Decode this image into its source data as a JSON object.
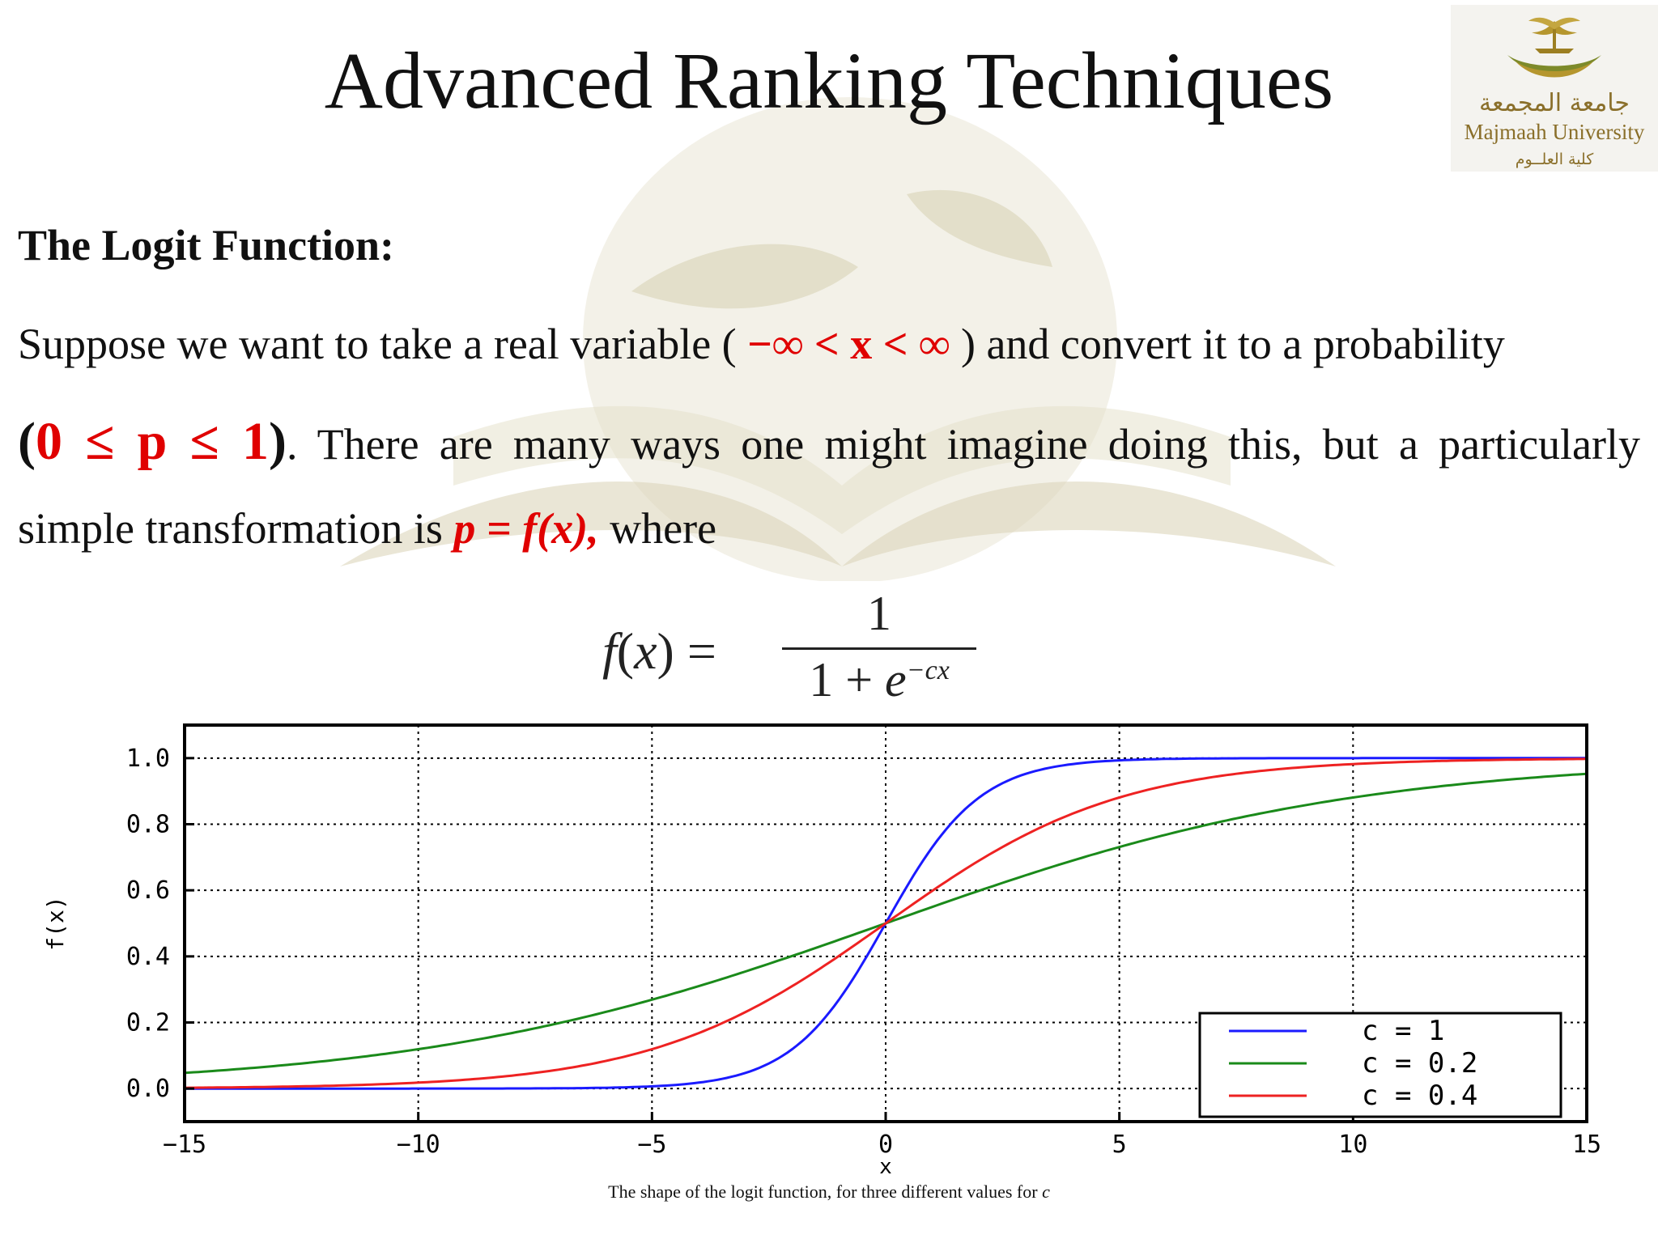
{
  "slide": {
    "title": "Advanced Ranking Techniques",
    "heading": "The Logit Function:",
    "line1_a": "Suppose we want to take a real variable (",
    "line1_range": "−∞ < x < ∞",
    "line1_b": ") and convert it to a probability",
    "line2_open": "(",
    "line2_range": "0 ≤ p ≤ 1",
    "line2_close": ")",
    "line2_rest": ". There are many ways one might imagine doing this, but a particularly",
    "line3_a": "simple transformation is",
    "line3_expr": "p = f(x),",
    "line3_b": "where",
    "caption_text": "The shape of the logit function, for three different values for",
    "caption_var": "c"
  },
  "logo": {
    "arabic_name": "جامعة المجمعة",
    "english_name": "Majmaah University",
    "college": "كلية العلــوم"
  },
  "formula": {
    "lhs_f": "f",
    "lhs_open": "(",
    "lhs_x": "x",
    "lhs_close": ") =",
    "numerator": "1",
    "denominator_base": "1 + ",
    "denominator_e": "e",
    "denominator_exp": "−cx"
  },
  "chart_data": {
    "type": "line",
    "function": "f(x) = 1 / (1 + e^(-c x))",
    "xlabel": "x",
    "ylabel": "f(x)",
    "xlim": [
      -15,
      15
    ],
    "ylim": [
      -0.1,
      1.1
    ],
    "x_ticks": [
      -15,
      -10,
      -5,
      0,
      5,
      10,
      15
    ],
    "x_tick_labels": [
      "−15",
      "−10",
      "−5",
      "0",
      "5",
      "10",
      "15"
    ],
    "y_ticks": [
      0.0,
      0.2,
      0.4,
      0.6,
      0.8,
      1.0
    ],
    "y_tick_labels": [
      "0.0",
      "0.2",
      "0.4",
      "0.6",
      "0.8",
      "1.0"
    ],
    "grid": true,
    "legend_position": "bottom-right",
    "series": [
      {
        "name": "c = 1",
        "c": 1,
        "color": "#1a1aff"
      },
      {
        "name": "c = 0.2",
        "c": 0.2,
        "color": "#1a8a1a"
      },
      {
        "name": "c = 0.4",
        "c": 0.4,
        "color": "#ee2222"
      }
    ]
  }
}
